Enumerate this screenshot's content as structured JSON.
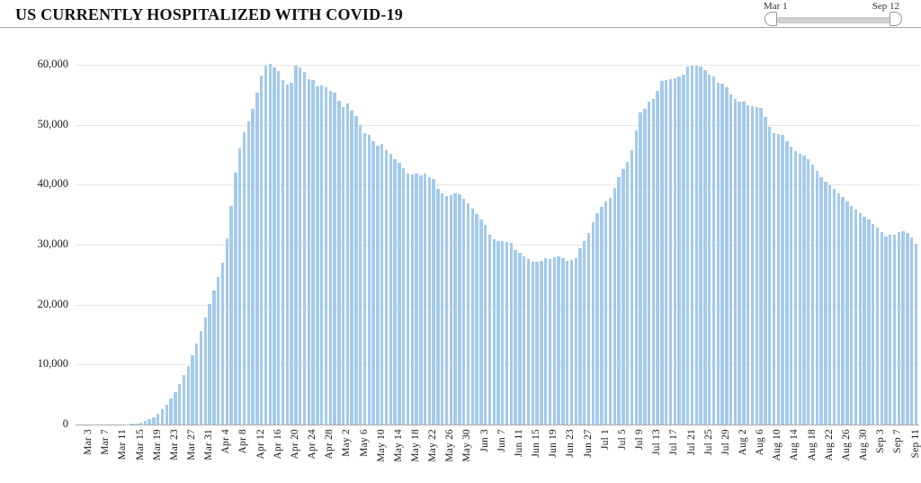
{
  "header": {
    "title": "US CURRENTLY HOSPITALIZED WITH COVID-19"
  },
  "slider": {
    "start_label": "Mar 1",
    "end_label": "Sep 12"
  },
  "colors": {
    "bar_fill": "#a4caec",
    "gridline": "#e7e7e7",
    "axis_line": "#adadad",
    "title_divider": "#a3a3a3",
    "slider_track": "#d2d2d2",
    "slider_handle_border": "#979797",
    "text": "#1a1a1a"
  },
  "chart_data": {
    "type": "bar",
    "title": "US CURRENTLY HOSPITALIZED WITH COVID-19",
    "ylabel": "",
    "xlabel": "",
    "ylim": [
      0,
      60000
    ],
    "grid": "horizontal",
    "legend": "none",
    "y_ticks": [
      {
        "label": "60,000",
        "value": 60000
      },
      {
        "label": "50,000",
        "value": 50000
      },
      {
        "label": "40,000",
        "value": 40000
      },
      {
        "label": "30,000",
        "value": 30000
      },
      {
        "label": "20,000",
        "value": 20000
      },
      {
        "label": "10,000",
        "value": 10000
      },
      {
        "label": "0",
        "value": 0
      }
    ],
    "x_tick_every": 4,
    "x_tick_start_index": 2,
    "x_tick_labels": [
      "Mar 3",
      "Mar 7",
      "Mar 11",
      "Mar 15",
      "Mar 19",
      "Mar 23",
      "Mar 27",
      "Mar 31",
      "Apr 4",
      "Apr 8",
      "Apr 12",
      "Apr 16",
      "Apr 20",
      "Apr 24",
      "Apr 28",
      "May 2",
      "May 6",
      "May 10",
      "May 14",
      "May 18",
      "May 22",
      "May 26",
      "May 30",
      "Jun 3",
      "Jun 7",
      "Jun 11",
      "Jun 15",
      "Jun 19",
      "Jun 23",
      "Jun 27",
      "Jul 1",
      "Jul 5",
      "Jul 9",
      "Jul 13",
      "Jul 17",
      "Jul 21",
      "Jul 25",
      "Jul 29",
      "Aug 2",
      "Aug 6",
      "Aug 10",
      "Aug 14",
      "Aug 18",
      "Aug 22",
      "Aug 26",
      "Aug 30",
      "Sep 3",
      "Sep 7",
      "Sep 11"
    ],
    "x": [
      "Mar 1",
      "Mar 2",
      "Mar 3",
      "Mar 4",
      "Mar 5",
      "Mar 6",
      "Mar 7",
      "Mar 8",
      "Mar 9",
      "Mar 10",
      "Mar 11",
      "Mar 12",
      "Mar 13",
      "Mar 14",
      "Mar 15",
      "Mar 16",
      "Mar 17",
      "Mar 18",
      "Mar 19",
      "Mar 20",
      "Mar 21",
      "Mar 22",
      "Mar 23",
      "Mar 24",
      "Mar 25",
      "Mar 26",
      "Mar 27",
      "Mar 28",
      "Mar 29",
      "Mar 30",
      "Mar 31",
      "Apr 1",
      "Apr 2",
      "Apr 3",
      "Apr 4",
      "Apr 5",
      "Apr 6",
      "Apr 7",
      "Apr 8",
      "Apr 9",
      "Apr 10",
      "Apr 11",
      "Apr 12",
      "Apr 13",
      "Apr 14",
      "Apr 15",
      "Apr 16",
      "Apr 17",
      "Apr 18",
      "Apr 19",
      "Apr 20",
      "Apr 21",
      "Apr 22",
      "Apr 23",
      "Apr 24",
      "Apr 25",
      "Apr 26",
      "Apr 27",
      "Apr 28",
      "Apr 29",
      "Apr 30",
      "May 1",
      "May 2",
      "May 3",
      "May 4",
      "May 5",
      "May 6",
      "May 7",
      "May 8",
      "May 9",
      "May 10",
      "May 11",
      "May 12",
      "May 13",
      "May 14",
      "May 15",
      "May 16",
      "May 17",
      "May 18",
      "May 19",
      "May 20",
      "May 21",
      "May 22",
      "May 23",
      "May 24",
      "May 25",
      "May 26",
      "May 27",
      "May 28",
      "May 29",
      "May 30",
      "May 31",
      "Jun 1",
      "Jun 2",
      "Jun 3",
      "Jun 4",
      "Jun 5",
      "Jun 6",
      "Jun 7",
      "Jun 8",
      "Jun 9",
      "Jun 10",
      "Jun 11",
      "Jun 12",
      "Jun 13",
      "Jun 14",
      "Jun 15",
      "Jun 16",
      "Jun 17",
      "Jun 18",
      "Jun 19",
      "Jun 20",
      "Jun 21",
      "Jun 22",
      "Jun 23",
      "Jun 24",
      "Jun 25",
      "Jun 26",
      "Jun 27",
      "Jun 28",
      "Jun 29",
      "Jun 30",
      "Jul 1",
      "Jul 2",
      "Jul 3",
      "Jul 4",
      "Jul 5",
      "Jul 6",
      "Jul 7",
      "Jul 8",
      "Jul 9",
      "Jul 10",
      "Jul 11",
      "Jul 12",
      "Jul 13",
      "Jul 14",
      "Jul 15",
      "Jul 16",
      "Jul 17",
      "Jul 18",
      "Jul 19",
      "Jul 20",
      "Jul 21",
      "Jul 22",
      "Jul 23",
      "Jul 24",
      "Jul 25",
      "Jul 26",
      "Jul 27",
      "Jul 28",
      "Jul 29",
      "Jul 30",
      "Jul 31",
      "Aug 1",
      "Aug 2",
      "Aug 3",
      "Aug 4",
      "Aug 5",
      "Aug 6",
      "Aug 7",
      "Aug 8",
      "Aug 9",
      "Aug 10",
      "Aug 11",
      "Aug 12",
      "Aug 13",
      "Aug 14",
      "Aug 15",
      "Aug 16",
      "Aug 17",
      "Aug 18",
      "Aug 19",
      "Aug 20",
      "Aug 21",
      "Aug 22",
      "Aug 23",
      "Aug 24",
      "Aug 25",
      "Aug 26",
      "Aug 27",
      "Aug 28",
      "Aug 29",
      "Aug 30",
      "Aug 31",
      "Sep 1",
      "Sep 2",
      "Sep 3",
      "Sep 4",
      "Sep 5",
      "Sep 6",
      "Sep 7",
      "Sep 8",
      "Sep 9",
      "Sep 10",
      "Sep 11"
    ],
    "values": [
      0,
      0,
      0,
      0,
      0,
      0,
      0,
      0,
      0,
      0,
      0,
      50,
      100,
      200,
      350,
      550,
      850,
      1250,
      1800,
      2500,
      3300,
      4300,
      5400,
      6700,
      8200,
      9800,
      11600,
      13500,
      15600,
      17800,
      20100,
      22300,
      24600,
      27000,
      31000,
      36500,
      42000,
      46000,
      48700,
      50500,
      52700,
      55300,
      58200,
      59800,
      60100,
      59500,
      58900,
      57400,
      56700,
      57000,
      59900,
      59600,
      58800,
      57600,
      57400,
      56400,
      56600,
      56300,
      55700,
      55300,
      54000,
      52900,
      53500,
      52400,
      51500,
      49900,
      48600,
      48300,
      47200,
      46500,
      46800,
      45800,
      45100,
      44300,
      43600,
      42700,
      41800,
      41700,
      41900,
      41600,
      41900,
      41300,
      41000,
      39300,
      38600,
      38100,
      38300,
      38600,
      38400,
      37700,
      36900,
      36000,
      35100,
      34200,
      33300,
      31700,
      30900,
      30600,
      30600,
      30500,
      30300,
      29100,
      28600,
      28100,
      27600,
      27200,
      27100,
      27300,
      27800,
      27600,
      27900,
      28100,
      27800,
      27300,
      27400,
      27800,
      29400,
      30600,
      32000,
      33800,
      35200,
      36300,
      37200,
      37800,
      39400,
      41200,
      42600,
      43800,
      45800,
      49000,
      52000,
      52600,
      53800,
      54300,
      55700,
      57300,
      57400,
      57600,
      57700,
      58100,
      58300,
      59700,
      59900,
      59800,
      59700,
      59100,
      58400,
      58000,
      57000,
      56800,
      56300,
      55100,
      54300,
      53800,
      53900,
      53300,
      53100,
      52900,
      52800,
      51300,
      49600,
      48600,
      48500,
      48300,
      47200,
      46300,
      45600,
      45200,
      44900,
      44200,
      43300,
      42300,
      41300,
      40500,
      39900,
      39300,
      38600,
      37900,
      37200,
      36400,
      35900,
      35300,
      34700,
      34200,
      33500,
      32900,
      32100,
      31400,
      31600,
      31700,
      32100,
      32300,
      31900,
      31200,
      30100
    ]
  }
}
